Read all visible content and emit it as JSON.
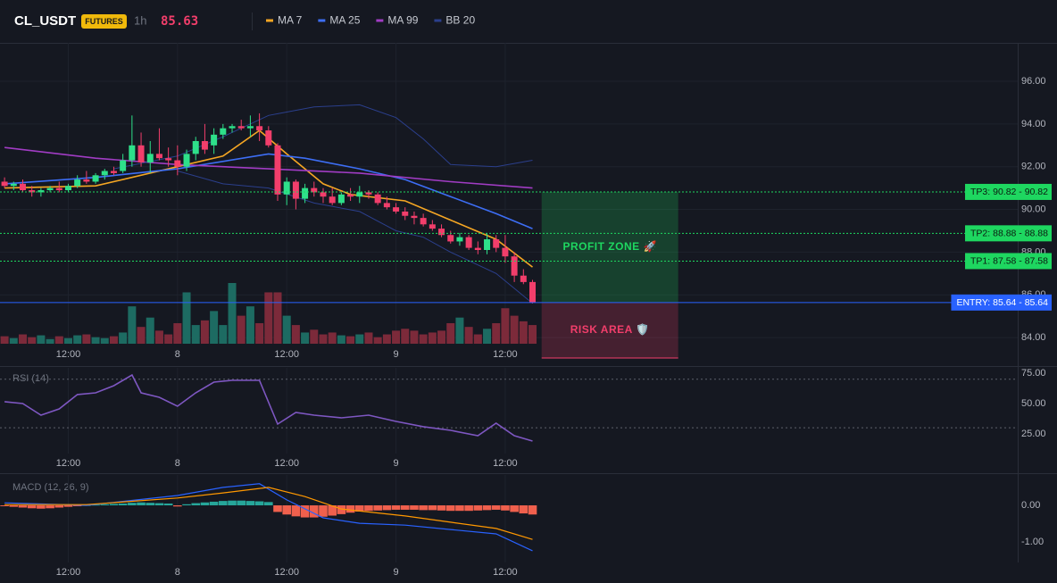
{
  "header": {
    "symbol": "CL_USDT",
    "badge": "FUTURES",
    "interval": "1h",
    "price": 85.63
  },
  "chart_data": [
    {
      "type": "candlestick",
      "x": [
        0,
        1,
        2,
        3,
        4,
        5,
        6,
        7,
        8,
        9,
        10,
        11,
        12,
        13,
        14,
        15,
        16,
        17,
        18,
        19,
        20,
        21,
        22,
        23,
        24,
        25,
        26,
        27,
        28,
        29,
        30,
        31,
        32,
        33,
        34,
        35,
        36,
        37,
        38,
        39,
        40,
        41,
        42,
        43,
        44,
        45,
        46,
        47,
        48,
        49,
        50,
        51,
        52,
        53,
        54,
        55,
        56,
        57,
        58
      ],
      "open": [
        91.3,
        91.1,
        91.2,
        90.9,
        90.8,
        90.9,
        91.0,
        90.9,
        91.1,
        91.4,
        91.3,
        91.6,
        91.8,
        91.8,
        92.3,
        93.0,
        92.2,
        92.6,
        92.4,
        92.3,
        92.0,
        92.6,
        93.2,
        93.0,
        93.5,
        93.8,
        93.9,
        93.8,
        93.9,
        93.7,
        93.0,
        90.7,
        91.3,
        90.5,
        91.0,
        90.8,
        90.6,
        90.3,
        90.7,
        90.6,
        90.8,
        90.7,
        90.3,
        90.1,
        89.9,
        89.7,
        89.6,
        89.3,
        89.1,
        88.8,
        88.5,
        88.7,
        88.2,
        88.1,
        88.6,
        88.2,
        87.8,
        86.9,
        86.6
      ],
      "high": [
        91.5,
        91.3,
        91.4,
        91.1,
        91.0,
        91.1,
        91.3,
        91.2,
        91.6,
        91.8,
        91.7,
        91.9,
        92.0,
        92.6,
        94.4,
        93.6,
        93.2,
        93.8,
        92.9,
        93.0,
        92.8,
        93.4,
        94.0,
        93.8,
        94.0,
        94.0,
        94.2,
        94.4,
        94.5,
        93.9,
        93.1,
        91.5,
        91.4,
        91.2,
        91.3,
        91.0,
        91.0,
        90.8,
        91.0,
        91.1,
        90.9,
        90.8,
        90.6,
        90.3,
        90.1,
        89.9,
        89.8,
        89.5,
        89.3,
        89.0,
        88.9,
        88.8,
        88.5,
        88.9,
        88.8,
        88.8,
        88.0,
        87.2,
        86.7
      ],
      "low": [
        91.0,
        90.9,
        90.8,
        90.6,
        90.6,
        90.8,
        90.8,
        90.8,
        91.0,
        91.2,
        91.2,
        91.4,
        91.6,
        91.7,
        92.0,
        92.0,
        91.7,
        92.3,
        92.0,
        91.6,
        91.8,
        92.3,
        92.6,
        92.6,
        93.3,
        93.6,
        93.7,
        93.4,
        93.2,
        92.9,
        90.4,
        90.2,
        90.0,
        90.3,
        90.6,
        90.3,
        90.2,
        90.2,
        90.4,
        90.3,
        90.5,
        90.2,
        90.0,
        89.8,
        89.5,
        89.3,
        89.2,
        89.0,
        88.7,
        88.4,
        88.3,
        88.1,
        87.9,
        87.9,
        88.0,
        87.5,
        86.6,
        86.5,
        85.6
      ],
      "close": [
        91.1,
        91.2,
        90.9,
        90.8,
        90.9,
        91.0,
        90.9,
        91.1,
        91.4,
        91.3,
        91.6,
        91.8,
        91.7,
        92.3,
        93.0,
        92.2,
        92.6,
        92.4,
        92.3,
        92.0,
        92.6,
        93.2,
        92.8,
        93.5,
        93.8,
        93.9,
        93.8,
        93.9,
        93.7,
        93.0,
        90.7,
        91.3,
        90.5,
        91.0,
        90.8,
        90.6,
        90.3,
        90.7,
        90.6,
        90.8,
        90.7,
        90.3,
        90.1,
        89.9,
        89.7,
        89.6,
        89.3,
        89.1,
        88.8,
        88.5,
        88.7,
        88.2,
        88.1,
        88.6,
        88.2,
        87.8,
        86.9,
        86.6,
        85.63
      ],
      "volume": [
        8,
        6,
        10,
        7,
        9,
        5,
        8,
        6,
        9,
        10,
        7,
        6,
        8,
        12,
        40,
        18,
        28,
        14,
        10,
        22,
        55,
        20,
        25,
        35,
        20,
        65,
        30,
        40,
        22,
        55,
        55,
        30,
        20,
        12,
        15,
        10,
        12,
        9,
        8,
        10,
        12,
        7,
        10,
        14,
        16,
        14,
        10,
        12,
        14,
        22,
        28,
        18,
        10,
        16,
        22,
        38,
        30,
        24,
        20
      ],
      "up_color": "#2ee08a",
      "down_color": "#f23e6b",
      "volume_up_color": "#1d6b62",
      "volume_down_color": "#7c2a3a",
      "series": [
        {
          "name": "MA 7",
          "color": "#f5a623",
          "x": [
            0,
            10,
            19,
            24,
            28,
            31,
            35,
            38,
            44,
            49,
            54,
            58
          ],
          "values": [
            91.0,
            91.1,
            92.0,
            92.5,
            93.7,
            92.6,
            91.2,
            90.7,
            90.4,
            89.5,
            88.6,
            87.3
          ]
        },
        {
          "name": "MA 25",
          "color": "#3d6ef5",
          "x": [
            0,
            10,
            19,
            29,
            33,
            39,
            44,
            49,
            54,
            58
          ],
          "values": [
            91.2,
            91.5,
            91.9,
            92.6,
            92.4,
            91.9,
            91.4,
            90.6,
            89.8,
            89.1
          ]
        },
        {
          "name": "MA 99",
          "color": "#a13cc4",
          "x": [
            0,
            10,
            19,
            29,
            39,
            49,
            58
          ],
          "values": [
            92.9,
            92.4,
            92.1,
            91.9,
            91.7,
            91.3,
            91.0
          ]
        },
        {
          "name": "BB 20",
          "color": "#2b3f8c",
          "x": [
            12,
            19,
            24,
            29,
            34,
            39,
            43,
            46,
            49,
            54,
            58
          ],
          "values": [
            91.9,
            92.5,
            93.4,
            94.4,
            94.8,
            94.9,
            94.3,
            93.3,
            92.1,
            92.0,
            92.3
          ]
        }
      ],
      "bb_lower": {
        "x": [
          19,
          24,
          29,
          34,
          39,
          43,
          46,
          49,
          54,
          58
        ],
        "values": [
          91.8,
          91.2,
          91.0,
          90.3,
          89.9,
          89.0,
          88.7,
          88.0,
          87.0,
          85.6
        ]
      },
      "levels": [
        {
          "label": "TP3: 90.82 - 90.82",
          "value": 90.82,
          "color": "#1ed760"
        },
        {
          "label": "TP2: 88.88 - 88.88",
          "value": 88.88,
          "color": "#1ed760"
        },
        {
          "label": "TP1: 87.58 - 87.58",
          "value": 87.58,
          "color": "#1ed760"
        },
        {
          "label": "ENTRY: 85.64 - 85.64",
          "value": 85.64,
          "color": "#2962ff"
        }
      ],
      "zones": [
        {
          "label": "PROFIT ZONE 🚀",
          "from": 85.64,
          "to": 90.82,
          "xspan": [
            59,
            74
          ],
          "color": "#1ed760"
        },
        {
          "label": "RISK AREA 🛡️",
          "from": 85.64,
          "to": 83.04,
          "xspan": [
            59,
            74
          ],
          "color": "#f23e6b"
        }
      ],
      "xlim": [
        -0.5,
        111.3
      ],
      "xticks": [
        {
          "value": 7,
          "label": "12:00"
        },
        {
          "value": 19,
          "label": "8"
        },
        {
          "value": 31,
          "label": "12:00"
        },
        {
          "value": 43,
          "label": "9"
        },
        {
          "value": 55,
          "label": "12:00"
        }
      ],
      "ylim": [
        83.71,
        97.8
      ],
      "yticks": [
        {
          "value": 84,
          "label": "84.00"
        },
        {
          "value": 86,
          "label": "86.00"
        },
        {
          "value": 88,
          "label": "88.00"
        },
        {
          "value": 90,
          "label": "90.00"
        },
        {
          "value": 92,
          "label": "92.00"
        },
        {
          "value": 94,
          "label": "94.00"
        },
        {
          "value": 96,
          "label": "96.00"
        }
      ],
      "grid": true
    },
    {
      "type": "line",
      "title": "RSI (14)",
      "series": [
        {
          "color": "#7e57c2",
          "x": [
            0,
            2,
            4,
            6,
            8,
            10,
            12,
            14,
            15,
            17,
            19,
            21,
            23,
            25,
            28,
            30,
            32,
            34,
            37,
            40,
            43,
            46,
            49,
            52,
            54,
            56,
            58
          ],
          "values": [
            51.5,
            50,
            40.4,
            45.6,
            57.4,
            58.8,
            64.7,
            73.5,
            58.8,
            55.1,
            47.8,
            58.8,
            67.6,
            69.1,
            69.1,
            33.1,
            42.6,
            40.4,
            38.2,
            40.4,
            35.3,
            30.9,
            27.9,
            23.5,
            33.8,
            23.5,
            19.1
          ]
        }
      ],
      "levels": [
        70,
        30
      ],
      "ylim": [
        8.8,
        79.4
      ],
      "yticks": [
        {
          "value": 25,
          "label": "25.00"
        },
        {
          "value": 50,
          "label": "50.00"
        },
        {
          "value": 75,
          "label": "75.00"
        }
      ],
      "grid": true
    },
    {
      "type": "macd",
      "title": "MACD (12, 26, 9)",
      "histogram": [
        -0.02,
        -0.04,
        -0.06,
        -0.08,
        -0.09,
        -0.08,
        -0.06,
        -0.04,
        -0.02,
        0.01,
        0.02,
        0.03,
        0.04,
        0.05,
        0.07,
        0.08,
        0.07,
        0.06,
        0.05,
        -0.03,
        0.03,
        0.06,
        0.08,
        0.1,
        0.12,
        0.13,
        0.13,
        0.12,
        0.11,
        0.09,
        -0.18,
        -0.25,
        -0.3,
        -0.33,
        -0.33,
        -0.31,
        -0.28,
        -0.24,
        -0.2,
        -0.17,
        -0.15,
        -0.14,
        -0.13,
        -0.12,
        -0.12,
        -0.12,
        -0.13,
        -0.13,
        -0.14,
        -0.15,
        -0.15,
        -0.15,
        -0.14,
        -0.13,
        -0.12,
        -0.14,
        -0.18,
        -0.22,
        -0.25
      ],
      "histogram_up_color": "#26a69a",
      "histogram_down_color": "#f0604d",
      "series": [
        {
          "color": "#2962ff",
          "x": [
            0,
            9,
            19,
            24,
            28,
            31,
            35,
            39,
            44,
            49,
            54,
            58
          ],
          "values": [
            0.07,
            0,
            0.27,
            0.49,
            0.59,
            0.15,
            -0.34,
            -0.49,
            -0.54,
            -0.66,
            -0.78,
            -1.24
          ]
        },
        {
          "color": "#ff9800",
          "x": [
            0,
            9,
            19,
            24,
            29,
            33,
            37,
            44,
            49,
            54,
            58
          ],
          "values": [
            0.02,
            0.02,
            0.2,
            0.34,
            0.49,
            0.24,
            -0.1,
            -0.29,
            -0.46,
            -0.63,
            -0.93
          ]
        }
      ],
      "ylim": [
        -1.56,
        0.83
      ],
      "yticks": [
        {
          "value": -1,
          "label": "-1.00"
        },
        {
          "value": 0,
          "label": "0.00"
        }
      ],
      "grid": true
    }
  ]
}
